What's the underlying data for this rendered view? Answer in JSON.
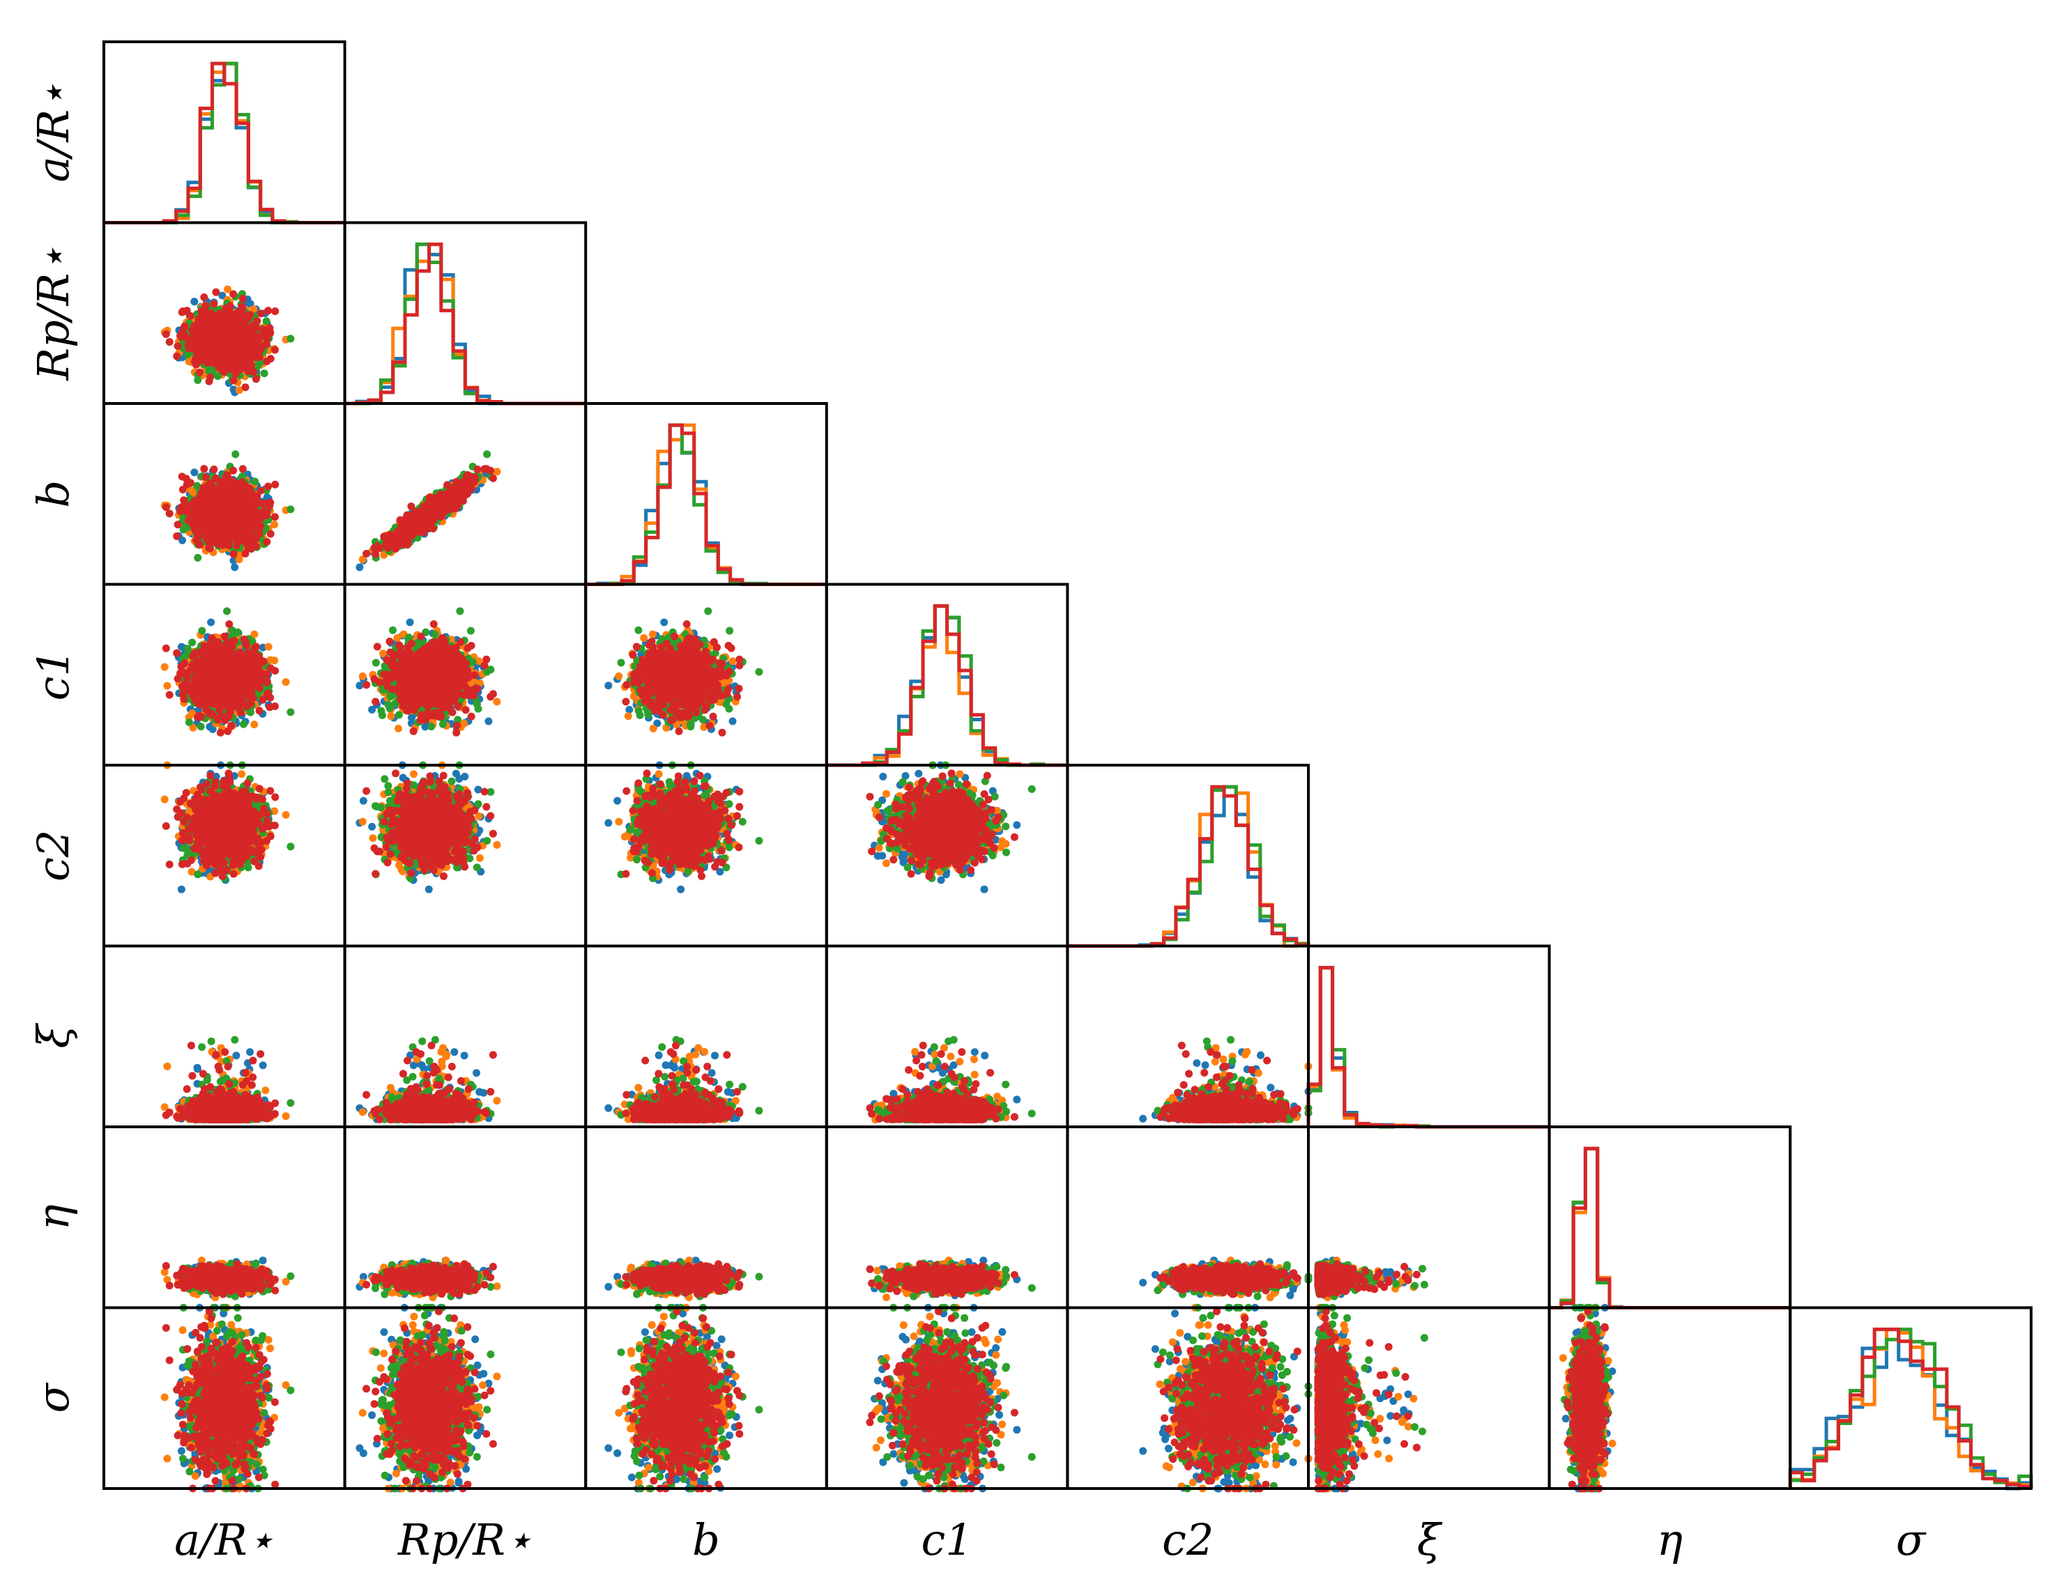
{
  "chart_data": {
    "type": "scatter",
    "subtype": "corner-plot",
    "title": "",
    "parameters": [
      {
        "label": "a/R⋆",
        "center": 0.5,
        "spread": 0.07
      },
      {
        "label": "Rp/R⋆",
        "center": 0.35,
        "spread": 0.08
      },
      {
        "label": "b",
        "center": 0.39,
        "spread": 0.08
      },
      {
        "label": "c1",
        "center": 0.48,
        "spread": 0.09
      },
      {
        "label": "c2",
        "center": 0.66,
        "spread": 0.1
      },
      {
        "label": "ξ",
        "center": 0.12,
        "spread": 0.1
      },
      {
        "label": "η",
        "center": 0.16,
        "spread": 0.03
      },
      {
        "label": "σ",
        "center": 0.45,
        "spread": 0.17
      }
    ],
    "correlations": [
      {
        "i": 2,
        "j": 1,
        "rho": 0.93
      }
    ],
    "series": [
      {
        "name": "",
        "color": "#1f77b4"
      },
      {
        "name": "",
        "color": "#ff7f0e"
      },
      {
        "name": "",
        "color": "#2ca02c"
      },
      {
        "name": "",
        "color": "#d62728"
      }
    ],
    "samples_per_series": 700,
    "histogram_bins": 20,
    "grid": false,
    "legend": "none",
    "ticks": "none"
  }
}
